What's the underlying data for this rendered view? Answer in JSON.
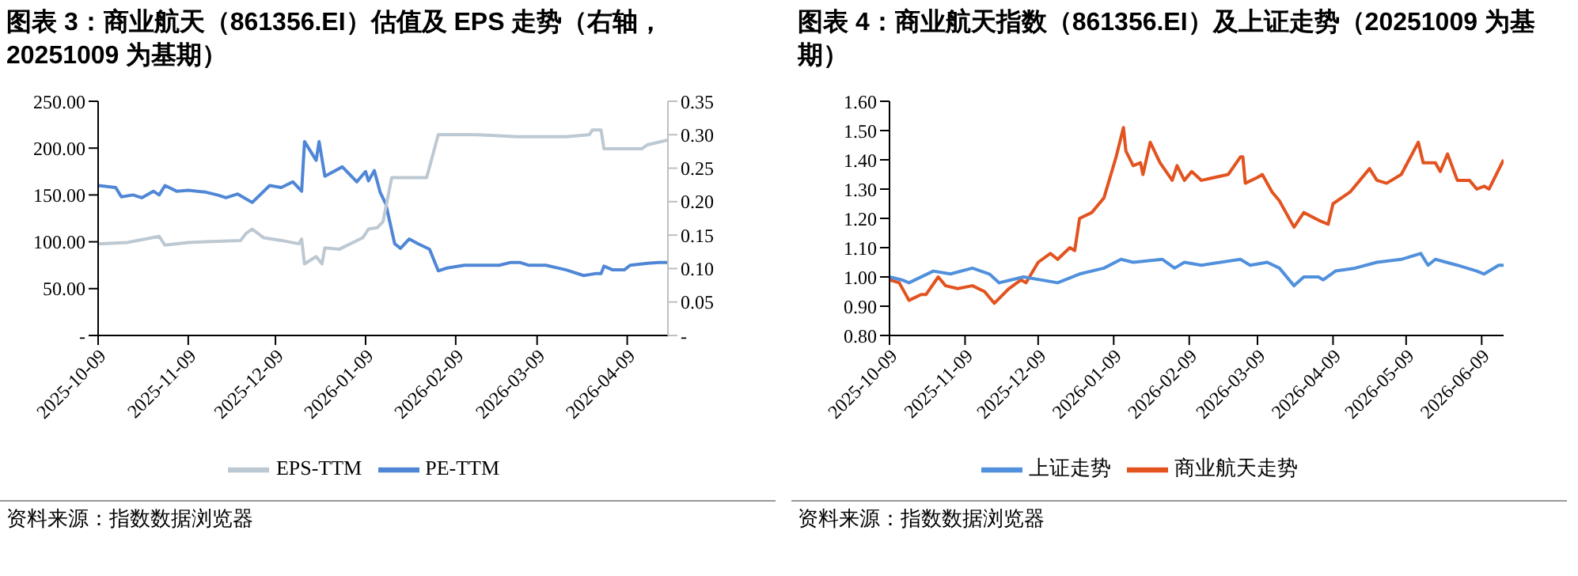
{
  "chart_data": [
    {
      "type": "line",
      "title": "图表 3：商业航天（861356.EI）估值及 EPS 走势（右轴，20251009 为基期）",
      "legend": "bottom",
      "xlim": [
        "2025-10-09",
        "2026-04-23"
      ],
      "xticks": [
        "2025-10-09",
        "2025-11-09",
        "2025-12-09",
        "2026-01-09",
        "2026-02-09",
        "2026-03-09",
        "2026-04-09"
      ],
      "ylim": [
        0,
        250
      ],
      "yticks": [
        {
          "value": 0,
          "label": "-"
        },
        {
          "value": 50,
          "label": "50.00"
        },
        {
          "value": 100,
          "label": "100.00"
        },
        {
          "value": 150,
          "label": "150.00"
        },
        {
          "value": 200,
          "label": "200.00"
        },
        {
          "value": 250,
          "label": "250.00"
        }
      ],
      "y2lim": [
        0,
        0.35
      ],
      "y2ticks": [
        {
          "value": 0,
          "label": "-"
        },
        0.05,
        {
          "value": 0.1,
          "label": "0.10"
        },
        0.15,
        {
          "value": 0.2,
          "label": "0.20"
        },
        0.25,
        {
          "value": 0.3,
          "label": "0.30"
        },
        0.35
      ],
      "annotations": [
        "资料来源：指数数据浏览器"
      ],
      "series": [
        {
          "name": "PE-TTM",
          "color": "#4f86d6",
          "x": [
            "2025-10-09",
            "2025-10-15",
            "2025-10-17",
            "2025-10-21",
            "2025-10-24",
            "2025-10-28",
            "2025-10-30",
            "2025-11-01",
            "2025-11-05",
            "2025-11-09",
            "2025-11-15",
            "2025-11-19",
            "2025-11-22",
            "2025-11-26",
            "2025-12-01",
            "2025-12-07",
            "2025-12-11",
            "2025-12-15",
            "2025-12-18",
            "2025-12-19",
            "2025-12-23",
            "2025-12-24",
            "2025-12-26",
            "2026-01-01",
            "2026-01-06",
            "2026-01-09",
            "2026-01-10",
            "2026-01-12",
            "2026-01-14",
            "2026-01-16",
            "2026-01-19",
            "2026-01-21",
            "2026-01-24",
            "2026-01-27",
            "2026-01-31",
            "2026-02-03",
            "2026-02-06",
            "2026-02-12",
            "2026-02-24",
            "2026-02-28",
            "2026-03-03",
            "2026-03-06",
            "2026-03-12",
            "2026-03-19",
            "2026-03-25",
            "2026-03-29",
            "2026-03-31",
            "2026-04-01",
            "2026-04-04",
            "2026-04-08",
            "2026-04-10",
            "2026-04-16",
            "2026-04-20",
            "2026-04-23"
          ],
          "values": [
            160,
            158,
            148,
            150,
            147,
            154,
            150,
            160,
            154,
            155,
            153,
            150,
            147,
            151,
            142,
            160,
            158,
            164,
            154,
            207,
            187,
            207,
            170,
            180,
            164,
            175,
            165,
            176,
            153,
            140,
            98,
            93,
            103,
            98,
            92,
            69,
            72,
            75,
            75,
            78,
            78,
            75,
            75,
            70,
            64,
            66,
            66,
            74,
            70,
            70,
            75,
            77,
            78,
            78
          ]
        },
        {
          "name": "EPS-TTM",
          "color": "#bcc8d2",
          "axis": "y2",
          "x": [
            "2025-10-09",
            "2025-10-19",
            "2025-10-25",
            "2025-10-30",
            "2025-11-01",
            "2025-11-09",
            "2025-11-27",
            "2025-11-29",
            "2025-12-01",
            "2025-12-05",
            "2025-12-11",
            "2025-12-17",
            "2025-12-18",
            "2025-12-19",
            "2025-12-23",
            "2025-12-25",
            "2025-12-26",
            "2025-12-31",
            "2026-01-08",
            "2026-01-10",
            "2026-01-13",
            "2026-01-15",
            "2026-01-18",
            "2026-01-30",
            "2026-02-03",
            "2026-02-16",
            "2026-02-22",
            "2026-03-02",
            "2026-03-19",
            "2026-03-27",
            "2026-03-28",
            "2026-03-31",
            "2026-04-01",
            "2026-04-14",
            "2026-04-16",
            "2026-04-23"
          ],
          "values": [
            0.137,
            0.139,
            0.144,
            0.148,
            0.135,
            0.139,
            0.142,
            0.153,
            0.159,
            0.146,
            0.142,
            0.137,
            0.144,
            0.107,
            0.118,
            0.107,
            0.131,
            0.129,
            0.146,
            0.159,
            0.161,
            0.17,
            0.236,
            0.236,
            0.3,
            0.3,
            0.299,
            0.297,
            0.297,
            0.3,
            0.307,
            0.307,
            0.279,
            0.279,
            0.285,
            0.292
          ]
        }
      ]
    },
    {
      "type": "line",
      "title": "图表 4：商业航天指数（861356.EI）及上证走势（20251009 为基期）",
      "legend": "bottom",
      "xlim": [
        "2025-10-09",
        "2026-06-18"
      ],
      "xticks": [
        "2025-10-09",
        "2025-11-09",
        "2025-12-09",
        "2026-01-09",
        "2026-02-09",
        "2026-03-09",
        "2026-04-09",
        "2026-05-09",
        "2026-06-09"
      ],
      "ylim": [
        0.8,
        1.6
      ],
      "yticks": [
        {
          "value": 0.8,
          "label": "0.80"
        },
        {
          "value": 0.9,
          "label": "0.90"
        },
        {
          "value": 1,
          "label": "1.00"
        },
        {
          "value": 1.1,
          "label": "1.10"
        },
        {
          "value": 1.2,
          "label": "1.20"
        },
        {
          "value": 1.3,
          "label": "1.30"
        },
        {
          "value": 1.4,
          "label": "1.40"
        },
        {
          "value": 1.5,
          "label": "1.50"
        },
        {
          "value": 1.6,
          "label": "1.60"
        }
      ],
      "annotations": [
        "资料来源：指数数据浏览器"
      ],
      "series": [
        {
          "name": "商业航天走势",
          "color": "#e2531f",
          "x": [
            "2025-10-09",
            "2025-10-13",
            "2025-10-17",
            "2025-10-22",
            "2025-10-24",
            "2025-10-29",
            "2025-11-01",
            "2025-11-06",
            "2025-11-12",
            "2025-11-17",
            "2025-11-21",
            "2025-11-27",
            "2025-12-02",
            "2025-12-04",
            "2025-12-09",
            "2025-12-14",
            "2025-12-17",
            "2025-12-22",
            "2025-12-24",
            "2025-12-26",
            "2025-12-31",
            "2026-01-05",
            "2026-01-10",
            "2026-01-13",
            "2026-01-14",
            "2026-01-17",
            "2026-01-20",
            "2026-01-21",
            "2026-01-24",
            "2026-01-28",
            "2026-02-02",
            "2026-02-04",
            "2026-02-07",
            "2026-02-10",
            "2026-02-14",
            "2026-02-25",
            "2026-03-02",
            "2026-03-03",
            "2026-03-04",
            "2026-03-09",
            "2026-03-11",
            "2026-03-15",
            "2026-03-18",
            "2026-03-24",
            "2026-03-28",
            "2026-04-04",
            "2026-04-07",
            "2026-04-09",
            "2026-04-16",
            "2026-04-24",
            "2026-04-27",
            "2026-05-01",
            "2026-05-07",
            "2026-05-14",
            "2026-05-16",
            "2026-05-21",
            "2026-05-23",
            "2026-05-26",
            "2026-05-30",
            "2026-06-04",
            "2026-06-07",
            "2026-06-10",
            "2026-06-12",
            "2026-06-18"
          ],
          "values": [
            0.99,
            0.98,
            0.92,
            0.94,
            0.94,
            1.0,
            0.97,
            0.96,
            0.97,
            0.95,
            0.91,
            0.96,
            0.99,
            0.98,
            1.05,
            1.08,
            1.06,
            1.1,
            1.09,
            1.2,
            1.22,
            1.27,
            1.41,
            1.51,
            1.43,
            1.38,
            1.39,
            1.35,
            1.46,
            1.39,
            1.33,
            1.38,
            1.33,
            1.36,
            1.33,
            1.35,
            1.41,
            1.41,
            1.32,
            1.34,
            1.35,
            1.29,
            1.26,
            1.17,
            1.22,
            1.19,
            1.18,
            1.25,
            1.29,
            1.37,
            1.33,
            1.32,
            1.35,
            1.46,
            1.39,
            1.39,
            1.36,
            1.42,
            1.33,
            1.33,
            1.3,
            1.31,
            1.3,
            1.4
          ]
        },
        {
          "name": "上证走势",
          "color": "#5090dc",
          "x": [
            "2025-10-09",
            "2025-10-14",
            "2025-10-17",
            "2025-10-27",
            "2025-11-03",
            "2025-11-12",
            "2025-11-19",
            "2025-11-23",
            "2025-12-03",
            "2025-12-17",
            "2025-12-26",
            "2026-01-05",
            "2026-01-12",
            "2026-01-17",
            "2026-01-29",
            "2026-02-03",
            "2026-02-07",
            "2026-02-14",
            "2026-03-02",
            "2026-03-06",
            "2026-03-13",
            "2026-03-18",
            "2026-03-24",
            "2026-03-28",
            "2026-04-03",
            "2026-04-05",
            "2026-04-10",
            "2026-04-18",
            "2026-04-27",
            "2026-05-07",
            "2026-05-15",
            "2026-05-18",
            "2026-05-21",
            "2026-05-30",
            "2026-06-07",
            "2026-06-10",
            "2026-06-16",
            "2026-06-18"
          ],
          "values": [
            1.0,
            0.99,
            0.98,
            1.02,
            1.01,
            1.03,
            1.01,
            0.98,
            1.0,
            0.98,
            1.01,
            1.03,
            1.06,
            1.05,
            1.06,
            1.03,
            1.05,
            1.04,
            1.06,
            1.04,
            1.05,
            1.03,
            0.97,
            1.0,
            1.0,
            0.99,
            1.02,
            1.03,
            1.05,
            1.06,
            1.08,
            1.04,
            1.06,
            1.04,
            1.02,
            1.01,
            1.04,
            1.04
          ]
        }
      ]
    }
  ]
}
